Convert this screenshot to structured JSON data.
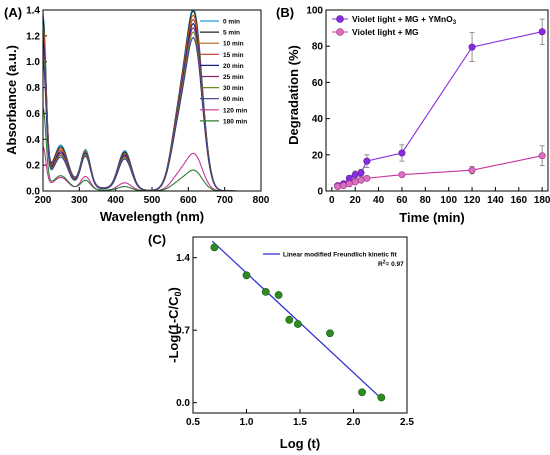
{
  "chart_data": [
    {
      "panel": "(A)",
      "type": "line",
      "xlabel": "Wavelength (nm)",
      "ylabel": "Absorbance (a.u.)",
      "xlim": [
        200,
        800
      ],
      "ylim": [
        0.0,
        1.4
      ],
      "xticks": [
        "200",
        "300",
        "400",
        "500",
        "600",
        "700",
        "800"
      ],
      "yticks": [
        "0.0",
        "0.2",
        "0.4",
        "0.6",
        "0.8",
        "1.0",
        "1.2",
        "1.4"
      ],
      "legend_position": "top-right",
      "peak_wavelengths_nm": [
        200,
        250,
        317,
        425,
        617
      ],
      "series": [
        {
          "name": "0 min",
          "color": "#1f9fd8",
          "peaks": [
            1.22,
            0.27,
            0.28,
            0.3,
            1.31
          ]
        },
        {
          "name": "5 min",
          "color": "#222222",
          "peaks": [
            1.2,
            0.26,
            0.27,
            0.29,
            1.29
          ]
        },
        {
          "name": "10 min",
          "color": "#b5651d",
          "peaks": [
            1.15,
            0.25,
            0.27,
            0.28,
            1.26
          ]
        },
        {
          "name": "15 min",
          "color": "#c0392b",
          "peaks": [
            1.1,
            0.24,
            0.26,
            0.27,
            1.23
          ]
        },
        {
          "name": "20 min",
          "color": "#1a237e",
          "peaks": [
            1.05,
            0.23,
            0.26,
            0.27,
            1.2
          ]
        },
        {
          "name": "25 min",
          "color": "#8e2471",
          "peaks": [
            1.0,
            0.22,
            0.25,
            0.26,
            1.17
          ]
        },
        {
          "name": "30 min",
          "color": "#6b8e23",
          "peaks": [
            0.95,
            0.21,
            0.25,
            0.25,
            1.14
          ]
        },
        {
          "name": "60 min",
          "color": "#3a3a8c",
          "peaks": [
            0.9,
            0.2,
            0.24,
            0.24,
            1.1
          ]
        },
        {
          "name": "120 min",
          "color": "#c8359b",
          "peaks": [
            0.3,
            0.08,
            0.1,
            0.06,
            0.27
          ]
        },
        {
          "name": "180 min",
          "color": "#2e7d32",
          "peaks": [
            0.6,
            0.09,
            0.07,
            0.03,
            0.15
          ]
        }
      ]
    },
    {
      "panel": "(B)",
      "type": "line",
      "xlabel": "Time (min)",
      "ylabel": "Degradation (%)",
      "xlim": [
        0,
        180
      ],
      "ylim": [
        0,
        100
      ],
      "xticks": [
        "0",
        "20",
        "40",
        "60",
        "80",
        "100",
        "120",
        "140",
        "160",
        "180"
      ],
      "yticks": [
        "0",
        "20",
        "40",
        "60",
        "80",
        "100"
      ],
      "legend_position": "top-left",
      "series": [
        {
          "name_prefix": "Violet light + MG + YMnO",
          "name_sub": "3",
          "color": "#8a2be2",
          "x": [
            5,
            10,
            15,
            20,
            25,
            30,
            60,
            120,
            180
          ],
          "y": [
            3,
            4,
            7,
            9,
            10,
            16.5,
            21,
            79.5,
            88
          ],
          "err": [
            0.5,
            1,
            1.5,
            2,
            2,
            3.5,
            4.5,
            8,
            7
          ]
        },
        {
          "name": "Violet light + MG",
          "color": "#c8359b",
          "x": [
            5,
            10,
            15,
            20,
            25,
            30,
            60,
            120,
            180
          ],
          "y": [
            2.5,
            3,
            4,
            5,
            6,
            7,
            9,
            11.5,
            19.5
          ],
          "err": [
            0.3,
            0.4,
            0.5,
            0.6,
            0.7,
            0.8,
            1,
            2,
            5.5
          ]
        }
      ]
    },
    {
      "panel": "(C)",
      "type": "scatter",
      "xlabel": "Log (t)",
      "ylabel_prefix": "-Log(1-C/C",
      "ylabel_sub": "0",
      "ylabel_suffix": ")",
      "xlim": [
        0.5,
        2.5
      ],
      "ylim": [
        -0.1,
        1.6
      ],
      "xticks": [
        "0.5",
        "1.0",
        "1.5",
        "2.0",
        "2.5"
      ],
      "yticks": [
        "0.0",
        "0.7",
        "1.4"
      ],
      "legend_position": "top-right",
      "points": {
        "color": "#2e8b22",
        "x": [
          0.7,
          1.0,
          1.18,
          1.3,
          1.4,
          1.48,
          1.78,
          2.08,
          2.26
        ],
        "y": [
          1.5,
          1.23,
          1.07,
          1.04,
          0.8,
          0.76,
          0.67,
          0.1,
          0.05
        ]
      },
      "fit": {
        "name": "Linear modified Freundlich kinetic fit",
        "color": "#2a2ad4",
        "x": [
          0.68,
          2.27
        ],
        "y": [
          1.56,
          0.03
        ],
        "r2_label": "R",
        "r2_sup": "2",
        "r2_value": "= 0.97"
      }
    }
  ]
}
